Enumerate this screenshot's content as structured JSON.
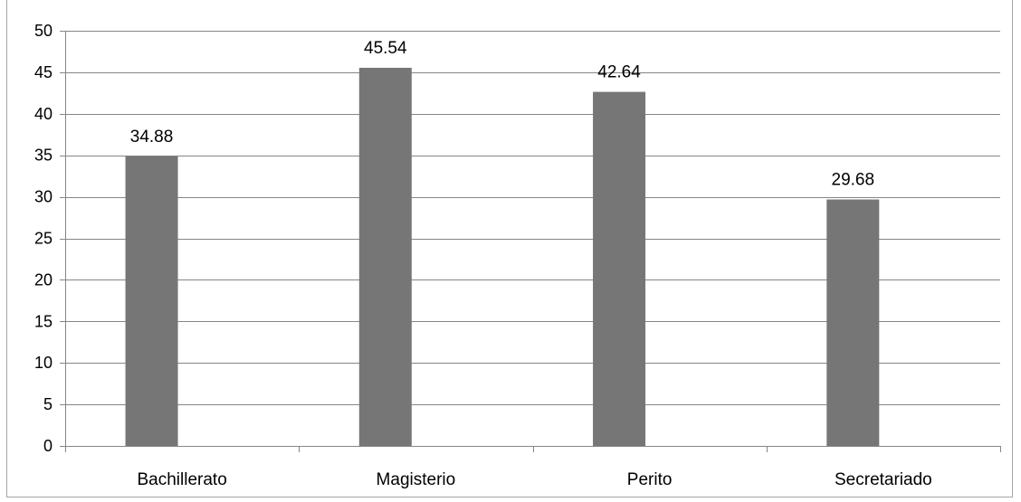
{
  "chart_data": {
    "type": "bar",
    "title": "",
    "categories": [
      "Bachillerato",
      "Magisterio",
      "Perito",
      "Secretariado"
    ],
    "values": [
      34.88,
      45.54,
      42.64,
      29.68
    ],
    "data_labels": [
      "34.88",
      "45.54",
      "42.64",
      "29.68"
    ],
    "y_ticks": [
      "0",
      "5",
      "10",
      "15",
      "20",
      "25",
      "30",
      "35",
      "40",
      "45",
      "50"
    ],
    "ylim": [
      0,
      50
    ],
    "xlabel": "",
    "ylabel": "",
    "grid": true,
    "legend": "none",
    "bar_color": "#767676",
    "grid_color": "#868686"
  }
}
